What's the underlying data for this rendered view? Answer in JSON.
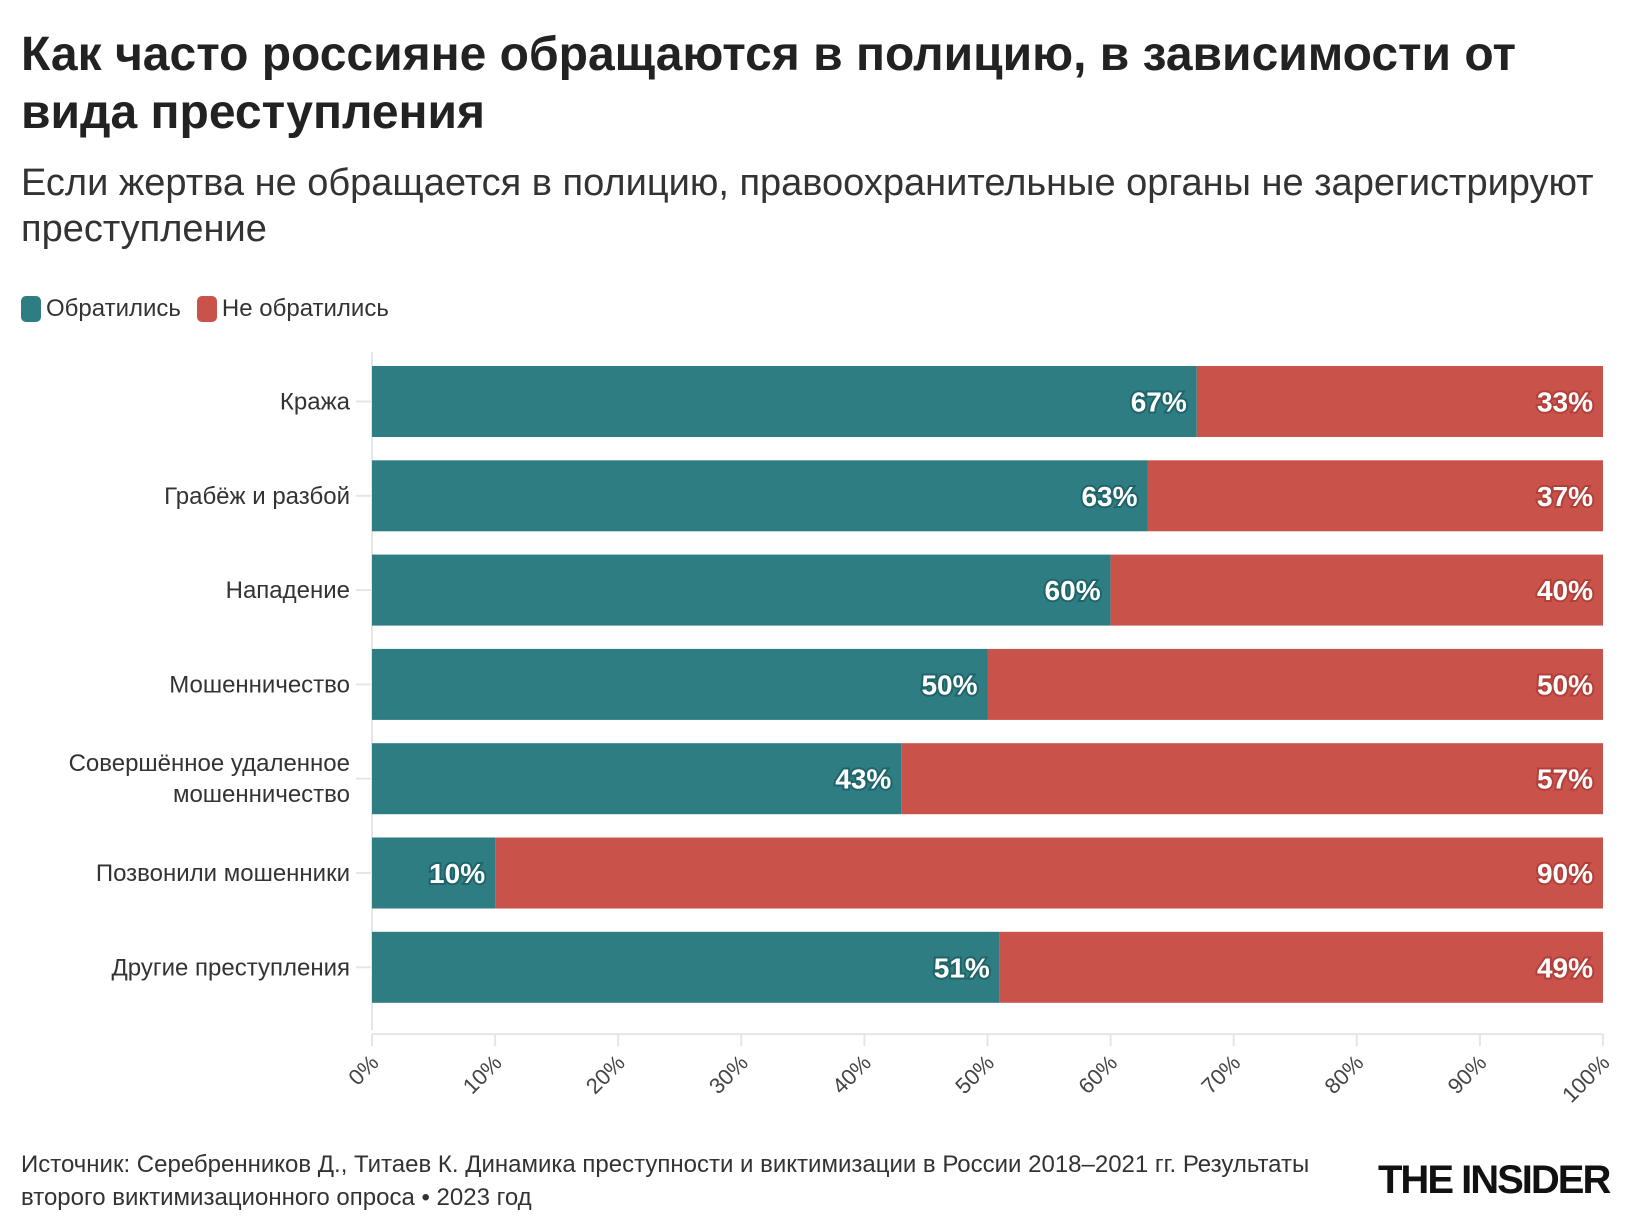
{
  "title": "Как часто россияне обращаются в полицию, в зависимости от вида преступления",
  "subtitle": "Если жертва не обращается в полицию, правоохранительные органы не зарегистрируют преступление",
  "footer": "Источник: Серебренников Д., Титаев К. Динамика преступности и виктимизации в России 2018–2021 гг. Результаты второго виктимизационного опроса • 2023 год",
  "logo": "THE INSIDER",
  "colors": {
    "reported": "#2e7d82",
    "not_reported": "#c9524a"
  },
  "chart_data": {
    "type": "bar",
    "orientation": "horizontal",
    "stacked": true,
    "categories": [
      "Кража",
      "Грабёж и разбой",
      "Нападение",
      "Мошенничество",
      "Совершённое удаленное мошенничество",
      "Позвонили мошенники",
      "Другие преступления"
    ],
    "series": [
      {
        "name": "Обратились",
        "values": [
          67,
          63,
          60,
          50,
          43,
          10,
          51
        ]
      },
      {
        "name": "Не обратились",
        "values": [
          33,
          37,
          40,
          50,
          57,
          90,
          49
        ]
      }
    ],
    "xlim": [
      0,
      100
    ],
    "xticks": [
      "0%",
      "10%",
      "20%",
      "30%",
      "40%",
      "50%",
      "60%",
      "70%",
      "80%",
      "90%",
      "100%"
    ],
    "legend": "top-left",
    "grid": false
  }
}
